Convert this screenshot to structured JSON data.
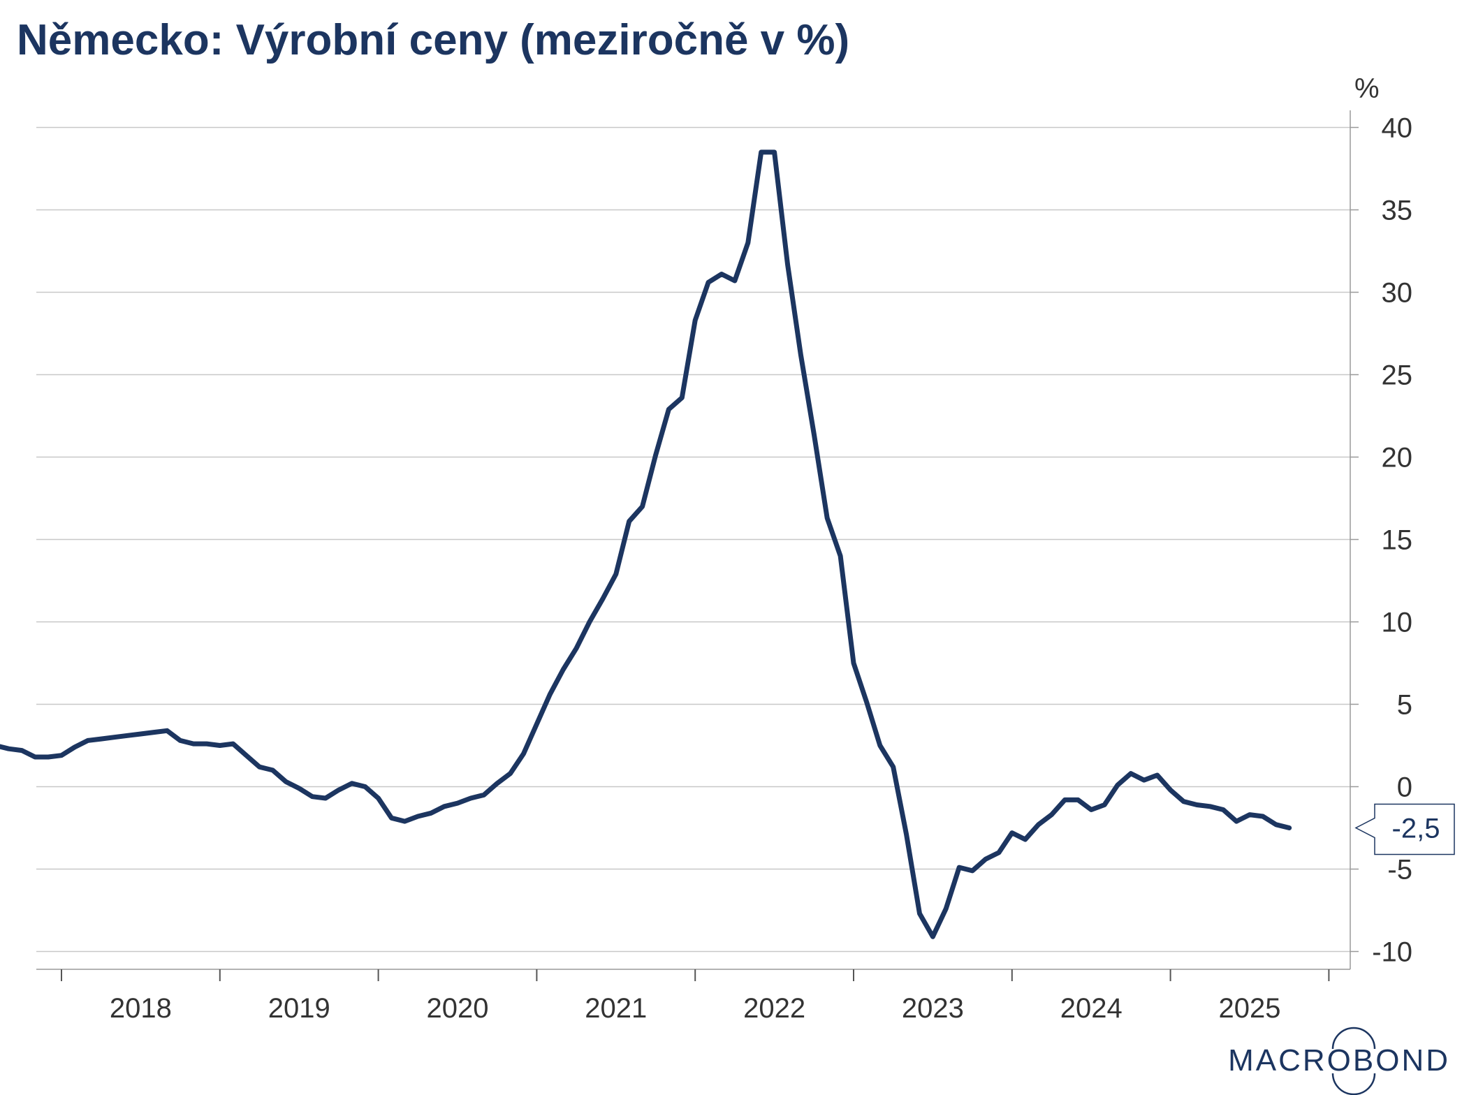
{
  "title": "Německo: Výrobní ceny (meziročně v %)",
  "logo": "MACROBOND",
  "chart_data": {
    "type": "line",
    "title": "Německo: Výrobní ceny (meziročně v %)",
    "ylabel": "%",
    "xlabel": "",
    "ylim": [
      -11.2,
      40.5
    ],
    "yticks": [
      40,
      35,
      30,
      25,
      20,
      15,
      10,
      5,
      0,
      -5,
      -10
    ],
    "ytick_labels": [
      "40",
      "35",
      "30",
      "25",
      "20",
      "15",
      "10",
      "5",
      "0",
      "-5",
      "-10"
    ],
    "xlim": [
      "2017-07",
      "2025-11"
    ],
    "xticks": [
      "2018",
      "2019",
      "2020",
      "2021",
      "2022",
      "2023",
      "2024",
      "2025"
    ],
    "grid": true,
    "last_value_label": "-2,5",
    "series": [
      {
        "color": "#1c3560",
        "x": [
          "2017-08",
          "2017-09",
          "2017-10",
          "2017-11",
          "2017-12",
          "2018-01",
          "2018-02",
          "2018-03",
          "2018-04",
          "2018-05",
          "2018-06",
          "2018-07",
          "2018-08",
          "2018-09",
          "2018-10",
          "2018-11",
          "2018-12",
          "2019-01",
          "2019-02",
          "2019-03",
          "2019-04",
          "2019-05",
          "2019-06",
          "2019-07",
          "2019-08",
          "2019-09",
          "2019-10",
          "2019-11",
          "2019-12",
          "2020-01",
          "2020-02",
          "2020-03",
          "2020-04",
          "2020-05",
          "2020-06",
          "2020-07",
          "2020-08",
          "2020-09",
          "2020-10",
          "2020-11",
          "2020-12",
          "2021-01",
          "2021-02",
          "2021-03",
          "2021-04",
          "2021-05",
          "2021-06",
          "2021-07",
          "2021-08",
          "2021-09",
          "2021-10",
          "2021-11",
          "2021-12",
          "2022-01",
          "2022-02",
          "2022-03",
          "2022-04",
          "2022-05",
          "2022-06",
          "2022-07",
          "2022-08",
          "2022-09",
          "2022-10",
          "2022-11",
          "2022-12",
          "2023-01",
          "2023-02",
          "2023-03",
          "2023-04",
          "2023-05",
          "2023-06",
          "2023-07",
          "2023-08",
          "2023-09",
          "2023-10",
          "2023-11",
          "2023-12",
          "2024-01",
          "2024-02",
          "2024-03",
          "2024-04",
          "2024-05",
          "2024-06",
          "2024-07",
          "2024-08",
          "2024-09",
          "2024-10",
          "2024-11",
          "2024-12",
          "2025-01",
          "2025-02",
          "2025-03",
          "2025-04",
          "2025-05",
          "2025-06",
          "2025-07",
          "2025-08",
          "2025-09",
          "2025-10"
        ],
        "y": [
          2.5,
          2.3,
          2.2,
          1.8,
          1.8,
          1.9,
          2.4,
          2.8,
          2.9,
          3.0,
          3.1,
          3.2,
          3.3,
          3.4,
          2.8,
          2.6,
          2.6,
          2.5,
          2.6,
          1.9,
          1.2,
          1.0,
          0.3,
          -0.1,
          -0.6,
          -0.7,
          -0.2,
          0.2,
          0.0,
          -0.7,
          -1.9,
          -2.1,
          -1.8,
          -1.6,
          -1.2,
          -1.0,
          -0.7,
          -0.5,
          0.2,
          0.8,
          2.0,
          3.8,
          5.6,
          7.1,
          8.4,
          10.0,
          11.4,
          12.9,
          16.1,
          17.0,
          20.1,
          22.9,
          23.6,
          28.3,
          30.6,
          31.1,
          30.7,
          33.0,
          38.5,
          38.5,
          31.7,
          26.2,
          21.4,
          16.3,
          14.0,
          7.5,
          5.1,
          2.5,
          1.2,
          -2.9,
          -7.7,
          -9.1,
          -7.4,
          -4.9,
          -5.1,
          -4.4,
          -4.0,
          -2.8,
          -3.2,
          -2.3,
          -1.7,
          -0.8,
          -0.8,
          -1.4,
          -1.1,
          0.1,
          0.8,
          0.4,
          0.7,
          -0.2,
          -0.9,
          -1.1,
          -1.2,
          -1.4,
          -2.1,
          -1.7,
          -1.8,
          -2.3,
          -2.5
        ]
      }
    ]
  }
}
